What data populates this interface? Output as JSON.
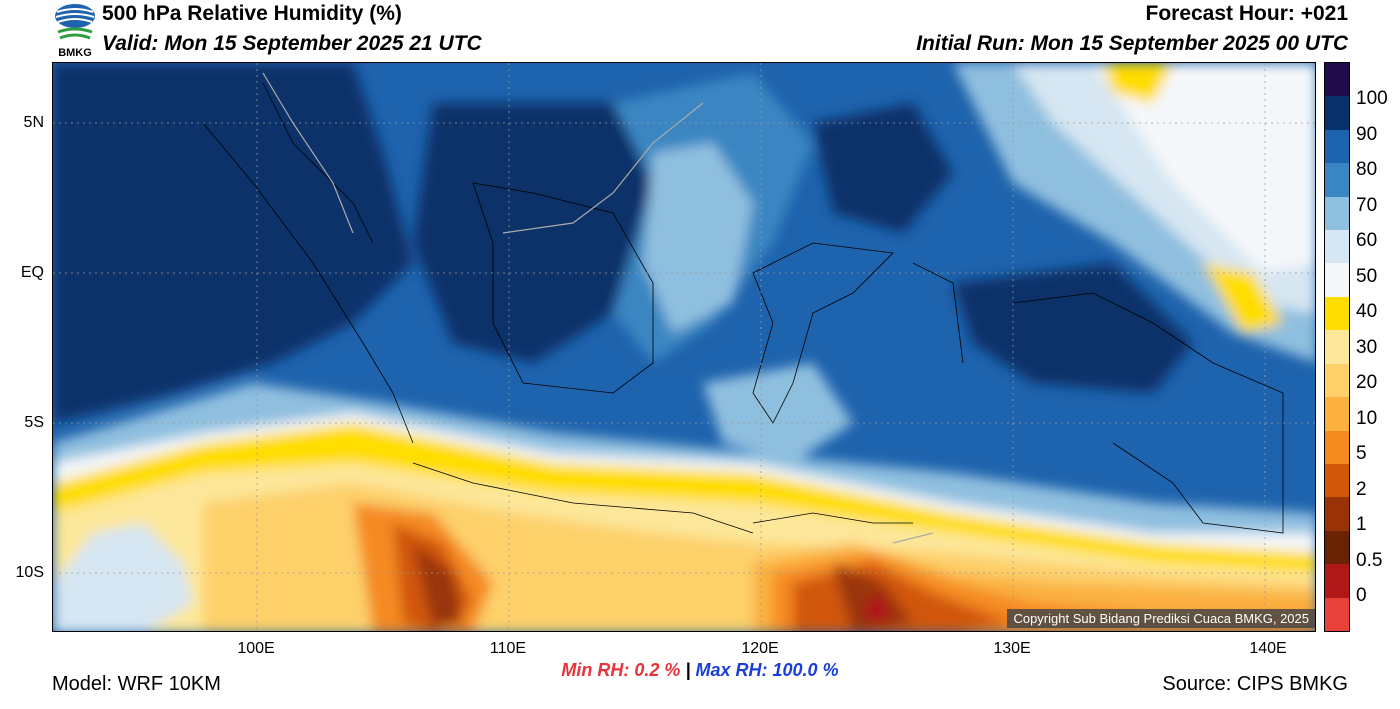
{
  "header": {
    "title": "500 hPa Relative Humidity (%)",
    "valid": "Valid: Mon 15 September 2025 21 UTC",
    "forecast_hour": "Forecast Hour: +021",
    "initial_run": "Initial Run: Mon 15 September 2025 00 UTC",
    "logo_text": "BMKG"
  },
  "map": {
    "lat_labels": [
      "5N",
      "EQ",
      "5S",
      "10S"
    ],
    "lon_labels": [
      "100E",
      "110E",
      "120E",
      "130E",
      "140E"
    ],
    "copyright": "Copyright Sub Bidang Prediksi Cuaca BMKG, 2025"
  },
  "colorbar": {
    "labels": [
      "100",
      "90",
      "80",
      "70",
      "60",
      "50",
      "40",
      "30",
      "20",
      "10",
      "5",
      "2",
      "1",
      "0.5",
      "0"
    ],
    "colors": [
      "#1f0a4a",
      "#08306b",
      "#1e63ad",
      "#3a86c2",
      "#8fbfdf",
      "#d6e6f2",
      "#f4f7fa",
      "#ffdd00",
      "#fde79a",
      "#fdd06a",
      "#fbb040",
      "#f58a20",
      "#d0560a",
      "#9a3408",
      "#6b2306",
      "#b01818",
      "#e8413a"
    ]
  },
  "stats": {
    "min_rh": "Min RH:   0.2 %",
    "separator": "|",
    "max_rh": "Max RH: 100.0 %"
  },
  "footer": {
    "model": "Model: WRF 10KM",
    "source": "Source: CIPS BMKG"
  }
}
